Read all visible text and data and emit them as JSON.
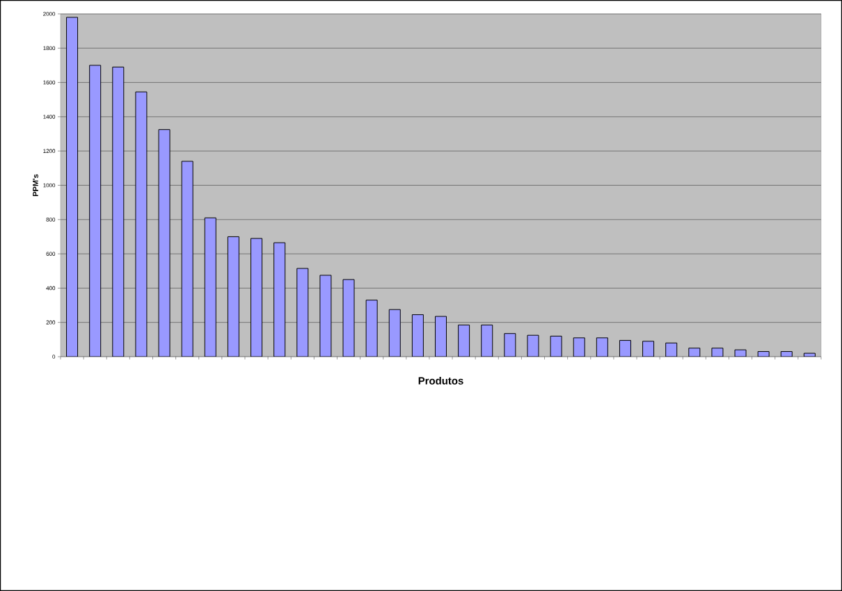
{
  "chart_data": {
    "type": "bar",
    "xlabel": "Produtos",
    "ylabel": "PPM's",
    "categories": [
      null,
      null,
      null,
      null,
      null,
      null,
      null,
      null,
      null,
      null,
      null,
      null,
      null,
      null,
      null,
      null,
      null,
      null,
      null,
      null,
      null,
      null,
      null,
      null,
      null,
      null,
      null,
      null,
      null,
      null,
      null,
      null,
      null
    ],
    "values": [
      1980,
      1700,
      1690,
      1545,
      1325,
      1140,
      810,
      700,
      690,
      665,
      515,
      475,
      450,
      330,
      275,
      245,
      235,
      185,
      185,
      135,
      125,
      120,
      110,
      110,
      95,
      90,
      80,
      50,
      50,
      40,
      30,
      30,
      20
    ],
    "color": "#9999ff",
    "ylim": [
      0,
      2000
    ],
    "yticks": [
      0,
      200,
      400,
      600,
      800,
      1000,
      1200,
      1400,
      1600,
      1800,
      2000
    ],
    "grid": "y"
  }
}
